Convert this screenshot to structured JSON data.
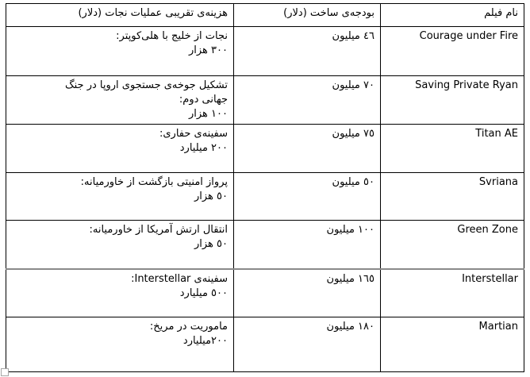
{
  "table": {
    "headers": {
      "film": "نام فیلم",
      "budget": "بودجه‌ی ساخت (دلار)",
      "cost": "هزینه‌ی تقریبی عملیات نجات (دلار)"
    },
    "rows": [
      {
        "film": "Courage under Fire",
        "budget": "٤٦ میلیون",
        "cost": "نجات از خلیج با هلی‌کوپتر:\n٣٠٠ هزار"
      },
      {
        "film": "Saving Private Ryan",
        "budget": "٧٠ میلیون",
        "cost": "تشکیل جوخه‌ی جستجوی اروپا در جنگ\nجهانی دوم:\n١٠٠ هزار"
      },
      {
        "film": "Titan AE",
        "budget": "٧٥ میلیون",
        "cost": "سفینه‌ی حفاری:\n٢٠٠ میلیارد"
      },
      {
        "film": "Svriana",
        "budget": "٥٠ میلیون",
        "cost": "پرواز امنیتی بازگشت از خاورمیانه:\n٥٠ هزار"
      },
      {
        "film": "Green Zone",
        "budget": "١٠٠ میلیون",
        "cost": "انتقال ارتش آمریکا از خاورمیانه:\n٥٠ هزار"
      },
      {
        "film": "Interstellar",
        "budget": "١٦٥ میلیون",
        "cost": "سفینه‌ی Interstellar:\n٥٠٠ میلیارد"
      },
      {
        "film": "Martian",
        "budget": "١٨٠ میلیون",
        "cost": "ماموریت در مریخ:\n٢٠٠میلیارد"
      }
    ]
  }
}
